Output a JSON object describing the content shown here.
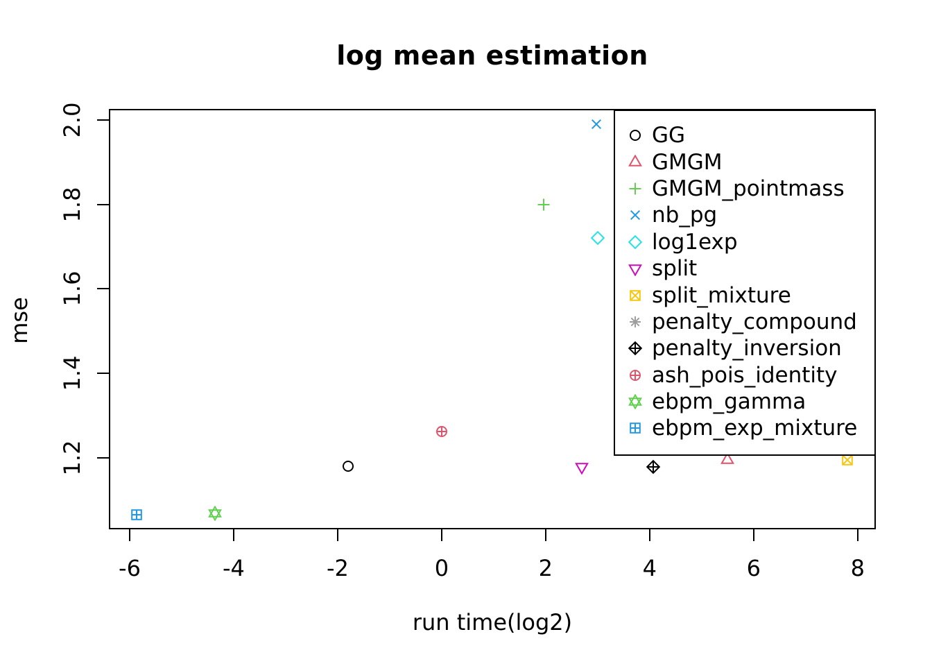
{
  "title": "log mean estimation",
  "chart_data": {
    "type": "scatter",
    "title": "log mean estimation",
    "xlabel": "run time(log2)",
    "ylabel": "mse",
    "xlim": [
      -6.4,
      8.35
    ],
    "ylim": [
      1.031,
      2.026
    ],
    "x_ticks": [
      "-6",
      "-4",
      "-2",
      "0",
      "2",
      "4",
      "6",
      "8"
    ],
    "y_ticks": [
      "1.2",
      "1.4",
      "1.6",
      "1.8",
      "2.0"
    ],
    "grid": false,
    "legend_position": "top-right",
    "legend_border": true,
    "series": [
      {
        "name": "GG",
        "symbol": "circle",
        "color": "#000000",
        "x": -1.8,
        "y": 1.18,
        "visible": true
      },
      {
        "name": "GMGM",
        "symbol": "triangle-up",
        "color": "#DF536B",
        "x": 5.5,
        "y": 1.195,
        "visible": true
      },
      {
        "name": "GMGM_pointmass",
        "symbol": "plus",
        "color": "#61D04F",
        "x": 1.96,
        "y": 1.8,
        "visible": true
      },
      {
        "name": "nb_pg",
        "symbol": "x",
        "color": "#2297E6",
        "x": 2.98,
        "y": 1.99,
        "visible": true
      },
      {
        "name": "log1exp",
        "symbol": "diamond",
        "color": "#28E2E5",
        "x": 3.0,
        "y": 1.72,
        "visible": true
      },
      {
        "name": "split",
        "symbol": "triangle-down",
        "color": "#CD0BBC",
        "x": 2.7,
        "y": 1.179,
        "visible": true
      },
      {
        "name": "split_mixture",
        "symbol": "square-x",
        "color": "#F5C710",
        "x": 7.8,
        "y": 1.195,
        "visible": true
      },
      {
        "name": "penalty_compound",
        "symbol": "asterisk",
        "color": "#9E9E9E",
        "x": null,
        "y": null,
        "visible": false
      },
      {
        "name": "penalty_inversion",
        "symbol": "diamond-plus",
        "color": "#000000",
        "x": 4.07,
        "y": 1.179,
        "visible": true
      },
      {
        "name": "ash_pois_identity",
        "symbol": "circle-plus",
        "color": "#DF536B",
        "x": 0.0,
        "y": 1.262,
        "visible": true
      },
      {
        "name": "ebpm_gamma",
        "symbol": "hexagram",
        "color": "#61D04F",
        "x": -4.36,
        "y": 1.069,
        "visible": true
      },
      {
        "name": "ebpm_exp_mixture",
        "symbol": "square-plus",
        "color": "#2297E6",
        "x": -5.87,
        "y": 1.065,
        "visible": true
      }
    ]
  }
}
